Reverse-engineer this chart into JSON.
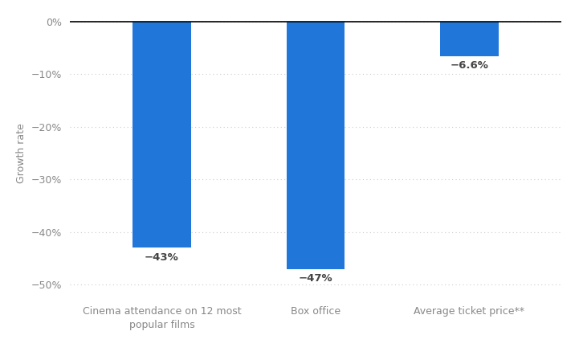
{
  "categories": [
    "Cinema attendance on 12 most\npopular films",
    "Box office",
    "Average ticket price**"
  ],
  "values": [
    -43,
    -47,
    -6.6
  ],
  "bar_labels": [
    "−43%",
    "−47%",
    "−6.6%"
  ],
  "bar_color": "#2176d9",
  "ylabel": "Growth rate",
  "ylim": [
    -52,
    2
  ],
  "yticks": [
    0,
    -10,
    -20,
    -30,
    -40,
    -50
  ],
  "ytick_labels": [
    "0%",
    "−10%",
    "−20%",
    "−30%",
    "−40%",
    "−50%"
  ],
  "background_color": "#ffffff",
  "bar_width": 0.38,
  "label_fontsize": 9.5,
  "ylabel_fontsize": 9,
  "tick_fontsize": 9,
  "label_color": "#444444",
  "tick_color": "#888888"
}
